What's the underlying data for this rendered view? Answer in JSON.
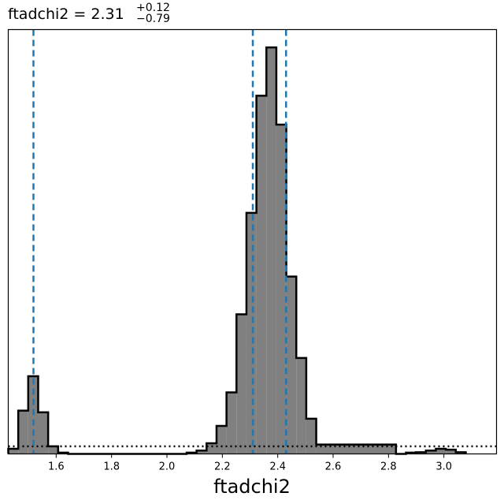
{
  "chart_data": {
    "type": "histogram",
    "title": {
      "param": "ftadchi2",
      "equals": " = ",
      "median": "2.31",
      "plus": "+0.12",
      "minus": "−0.79"
    },
    "xlabel": "ftadchi2",
    "xlim": [
      1.427,
      3.19
    ],
    "ylim": [
      0,
      1.0
    ],
    "x_ticks": [
      1.6,
      1.8,
      2.0,
      2.2,
      2.4,
      2.6,
      2.8,
      3.0
    ],
    "x_tick_labels": [
      "1.6",
      "1.8",
      "2.0",
      "2.2",
      "2.4",
      "2.6",
      "2.8",
      "3.0"
    ],
    "y_ticks_visible": false,
    "bin_edges": [
      1.427,
      1.463,
      1.499,
      1.535,
      1.571,
      1.607,
      1.643,
      2.071,
      2.107,
      2.143,
      2.179,
      2.215,
      2.251,
      2.287,
      2.323,
      2.359,
      2.395,
      2.431,
      2.467,
      2.503,
      2.539,
      2.827,
      2.863,
      2.899,
      2.935,
      2.971,
      3.007,
      3.043,
      3.079
    ],
    "counts": [
      0.012,
      0.102,
      0.183,
      0.098,
      0.018,
      0.003,
      0.0,
      0.003,
      0.008,
      0.025,
      0.066,
      0.145,
      0.329,
      0.568,
      0.844,
      0.958,
      0.776,
      0.418,
      0.226,
      0.083,
      0.022,
      0.0,
      0.003,
      0.004,
      0.008,
      0.012,
      0.01,
      0.004
    ],
    "quantiles": [
      1.518,
      2.31,
      2.43
    ],
    "quantile_color": "#1f77b4",
    "hist_fill": "#808080",
    "hist_edge": "#000000",
    "baseline_dotted_y": 0.018
  }
}
